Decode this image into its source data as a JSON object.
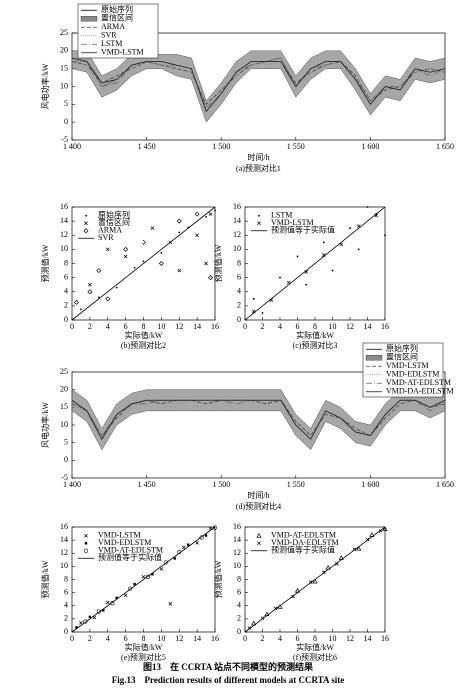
{
  "chart_data": [
    {
      "type": "line",
      "subtitle": "(a)预测对比1",
      "xlabel": "时间/h",
      "ylabel": "风电功率/kW",
      "xlim": [
        1400,
        1650
      ],
      "xticks": [
        {
          "value": 1400,
          "label": "1 400"
        },
        {
          "value": 1450,
          "label": "1 450"
        },
        {
          "value": 1500,
          "label": "1 500"
        },
        {
          "value": 1550,
          "label": "1 550"
        },
        {
          "value": 1600,
          "label": "1 600"
        },
        {
          "value": 1650,
          "label": "1 650"
        }
      ],
      "ylim": [
        -5,
        25
      ],
      "yticks": [
        -5,
        0,
        5,
        10,
        15,
        20,
        25
      ],
      "legend": "upper left",
      "x": [
        1400,
        1410,
        1420,
        1430,
        1440,
        1450,
        1460,
        1470,
        1480,
        1490,
        1500,
        1510,
        1520,
        1530,
        1540,
        1550,
        1560,
        1570,
        1580,
        1590,
        1600,
        1610,
        1620,
        1630,
        1640,
        1650
      ],
      "series": [
        {
          "name": "原始序列",
          "color": "#000000",
          "values": [
            18,
            17,
            10,
            12,
            16,
            17,
            17,
            16,
            15,
            3,
            8,
            14,
            17,
            17,
            18,
            10,
            15,
            17,
            17,
            12,
            5,
            10,
            9,
            15,
            14,
            15
          ]
        },
        {
          "name": "置信区间",
          "color": "#8a8a8a",
          "lower": [
            15,
            14,
            7,
            9,
            13,
            15,
            15,
            13,
            12,
            0,
            5,
            11,
            15,
            15,
            15,
            7,
            12,
            15,
            15,
            9,
            2,
            7,
            6,
            12,
            11,
            12
          ],
          "upper": [
            20,
            20,
            13,
            15,
            19,
            19,
            19,
            19,
            18,
            6,
            11,
            17,
            20,
            20,
            20,
            13,
            18,
            20,
            20,
            15,
            8,
            13,
            12,
            18,
            17,
            18
          ]
        },
        {
          "name": "ARMA",
          "color": "#444444",
          "dash": "4,2",
          "values": [
            17,
            16,
            11,
            13,
            15,
            17,
            16,
            15,
            14,
            5,
            9,
            13,
            16,
            17,
            17,
            11,
            14,
            16,
            17,
            13,
            6,
            9,
            10,
            14,
            15,
            14
          ]
        },
        {
          "name": "SVR",
          "color": "#999999",
          "dash": "1,1",
          "values": [
            18,
            16,
            9,
            12,
            15,
            16,
            17,
            16,
            14,
            4,
            7,
            13,
            17,
            16,
            17,
            9,
            14,
            17,
            16,
            11,
            5,
            11,
            9,
            14,
            14,
            15
          ]
        },
        {
          "name": "LSTM",
          "color": "#666666",
          "dash": "6,2,1,2",
          "values": [
            17,
            17,
            10,
            11,
            16,
            17,
            16,
            16,
            15,
            4,
            8,
            14,
            16,
            17,
            18,
            10,
            15,
            16,
            17,
            12,
            6,
            10,
            10,
            15,
            13,
            15
          ]
        },
        {
          "name": "VMD-LSTM",
          "color": "#222222",
          "values": [
            18,
            17,
            11,
            12,
            16,
            17,
            17,
            16,
            15,
            3,
            8,
            14,
            17,
            17,
            17,
            10,
            15,
            17,
            17,
            12,
            5,
            10,
            9,
            15,
            14,
            15
          ]
        }
      ]
    },
    {
      "type": "scatter",
      "subtitle": "(b)预测对比2",
      "xlabel": "实际值/kW",
      "ylabel": "预测值/kW",
      "xlim": [
        0,
        16
      ],
      "xticks": [
        0,
        2,
        4,
        6,
        8,
        10,
        12,
        14,
        16
      ],
      "ylim": [
        0,
        16
      ],
      "yticks": [
        0,
        2,
        4,
        6,
        8,
        10,
        12,
        14,
        16
      ],
      "legend": "upper left",
      "series": [
        {
          "name": "原始序列",
          "color": "#000000",
          "marker": "dot",
          "x": [
            1,
            3,
            5,
            7,
            8,
            10,
            12,
            13,
            15,
            16
          ],
          "values": [
            1.5,
            3.2,
            4.6,
            7.4,
            8.3,
            9.5,
            12.4,
            13.1,
            14.6,
            15.5
          ]
        },
        {
          "name": "置信区间",
          "color": "#000000",
          "marker": "x",
          "x": [
            2,
            4,
            5.5,
            6,
            9,
            11,
            12,
            14,
            15,
            15.5
          ],
          "values": [
            5,
            10,
            14,
            9,
            13,
            11,
            7,
            12,
            8,
            15
          ]
        },
        {
          "name": "ARMA",
          "color": "#000000",
          "marker": "diamond",
          "x": [
            0.5,
            2,
            3,
            4,
            6,
            8,
            10,
            12,
            14,
            15.5
          ],
          "values": [
            2.5,
            4,
            7,
            3,
            10,
            11,
            8,
            14,
            15,
            6
          ]
        },
        {
          "name": "SVR",
          "color": "#000000",
          "marker": "line",
          "x": [
            0,
            16
          ],
          "values": [
            0,
            16
          ]
        }
      ]
    },
    {
      "type": "scatter",
      "subtitle": "(c)预测对比3",
      "xlabel": "实际值/kW",
      "ylabel": "预测值/kW",
      "xlim": [
        0,
        16
      ],
      "xticks": [
        0,
        2,
        4,
        6,
        8,
        10,
        12,
        14,
        16
      ],
      "ylim": [
        0,
        16
      ],
      "yticks": [
        0,
        2,
        4,
        6,
        8,
        10,
        12,
        14,
        16
      ],
      "legend": "upper left",
      "series": [
        {
          "name": "LSTM",
          "color": "#000000",
          "marker": "dot",
          "x": [
            1,
            2,
            4,
            6,
            7,
            9,
            10,
            12,
            13,
            15,
            16,
            14
          ],
          "values": [
            3,
            1,
            6,
            9,
            5,
            11,
            7,
            13,
            10,
            15,
            12,
            16
          ]
        },
        {
          "name": "VMD-LSTM",
          "color": "#000000",
          "marker": "x",
          "x": [
            1,
            3,
            5,
            7,
            9,
            11,
            13,
            15
          ],
          "values": [
            1.2,
            2.8,
            5.3,
            6.8,
            9.2,
            10.7,
            13.3,
            14.8
          ]
        },
        {
          "name": "预测值等于实际值",
          "color": "#000000",
          "marker": "line",
          "x": [
            0,
            16
          ],
          "values": [
            0,
            16
          ]
        }
      ]
    },
    {
      "type": "line",
      "subtitle": "(d)预测对比4",
      "xlabel": "时间/h",
      "ylabel": "风电功率/kW",
      "xlim": [
        1400,
        1650
      ],
      "xticks": [
        {
          "value": 1400,
          "label": "1 400"
        },
        {
          "value": 1450,
          "label": "1 450"
        },
        {
          "value": 1500,
          "label": "1 500"
        },
        {
          "value": 1550,
          "label": "1 550"
        },
        {
          "value": 1600,
          "label": "1 600"
        },
        {
          "value": 1650,
          "label": "1 650"
        }
      ],
      "ylim": [
        -5,
        25
      ],
      "yticks": [
        -5,
        0,
        5,
        10,
        15,
        20,
        25
      ],
      "legend": "upper right",
      "x": [
        1400,
        1410,
        1420,
        1430,
        1440,
        1450,
        1460,
        1470,
        1480,
        1490,
        1500,
        1510,
        1520,
        1530,
        1540,
        1550,
        1560,
        1570,
        1580,
        1590,
        1600,
        1610,
        1620,
        1630,
        1640,
        1650
      ],
      "series": [
        {
          "name": "原始序列",
          "color": "#000000",
          "values": [
            17,
            14,
            6,
            13,
            16,
            17,
            17,
            17,
            17,
            17,
            17,
            17,
            17,
            17,
            17,
            10,
            6,
            14,
            12,
            8,
            7,
            13,
            17,
            17,
            15,
            17
          ]
        },
        {
          "name": "置信区间",
          "color": "#8a8a8a",
          "lower": [
            14,
            11,
            3,
            10,
            13,
            14,
            14,
            14,
            14,
            14,
            14,
            14,
            14,
            14,
            14,
            7,
            3,
            11,
            9,
            5,
            4,
            10,
            14,
            14,
            12,
            14
          ],
          "upper": [
            20,
            17,
            9,
            16,
            19,
            20,
            20,
            20,
            20,
            20,
            20,
            20,
            20,
            20,
            20,
            13,
            9,
            17,
            15,
            11,
            10,
            16,
            20,
            20,
            18,
            20
          ]
        },
        {
          "name": "VMD-LSTM",
          "color": "#444444",
          "dash": "4,2",
          "values": [
            16,
            14,
            7,
            12,
            16,
            17,
            16,
            17,
            17,
            16,
            17,
            17,
            17,
            16,
            17,
            11,
            7,
            13,
            12,
            9,
            7,
            12,
            16,
            17,
            15,
            16
          ]
        },
        {
          "name": "VMD-EDLSTM",
          "color": "#999999",
          "dash": "1,1",
          "values": [
            17,
            13,
            6,
            13,
            15,
            17,
            17,
            16,
            17,
            17,
            16,
            17,
            17,
            17,
            16,
            10,
            6,
            14,
            11,
            8,
            8,
            13,
            17,
            16,
            15,
            17
          ]
        },
        {
          "name": "VMD-AT-EDLSTM",
          "color": "#666666",
          "dash": "6,2,1,2",
          "values": [
            17,
            14,
            7,
            13,
            16,
            16,
            17,
            17,
            17,
            17,
            17,
            16,
            17,
            17,
            17,
            10,
            6,
            14,
            12,
            8,
            7,
            13,
            17,
            17,
            14,
            17
          ]
        },
        {
          "name": "VMD-DA-EDLSTM",
          "color": "#222222",
          "values": [
            17,
            14,
            6,
            13,
            16,
            17,
            17,
            17,
            17,
            17,
            17,
            17,
            17,
            17,
            17,
            10,
            6,
            14,
            12,
            8,
            7,
            13,
            17,
            17,
            15,
            17
          ]
        }
      ]
    },
    {
      "type": "scatter",
      "subtitle": "(e)预测对比5",
      "xlabel": "实际值/kW",
      "ylabel": "预测值/kW",
      "xlim": [
        0,
        16
      ],
      "xticks": [
        0,
        2,
        4,
        6,
        8,
        10,
        12,
        14,
        16
      ],
      "ylim": [
        0,
        16
      ],
      "yticks": [
        0,
        2,
        4,
        6,
        8,
        10,
        12,
        14,
        16
      ],
      "legend": "upper left",
      "series": [
        {
          "name": "VMD-LSTM",
          "color": "#000000",
          "marker": "x",
          "x": [
            1,
            2.5,
            4,
            6,
            8,
            10,
            11,
            12.5,
            14,
            15.5
          ],
          "values": [
            1.4,
            2.2,
            4.5,
            5.6,
            8.4,
            9.6,
            4.3,
            12.9,
            13.6,
            15.8
          ]
        },
        {
          "name": "VMD-EDLSTM",
          "color": "#000000",
          "marker": "square",
          "x": [
            0.5,
            2,
            3.5,
            5,
            7,
            9,
            11.5,
            13,
            15
          ],
          "values": [
            0.7,
            2.3,
            3.3,
            5.2,
            7.3,
            8.8,
            11.2,
            13.3,
            14.7
          ]
        },
        {
          "name": "VMD-AT-EDLSTM",
          "color": "#000000",
          "marker": "circle",
          "x": [
            1.5,
            3,
            4.5,
            6.5,
            8.5,
            10.5,
            12,
            14.5,
            16
          ],
          "values": [
            1.6,
            3.1,
            4.4,
            6.6,
            8.4,
            10.6,
            12.2,
            14.4,
            15.9
          ]
        },
        {
          "name": "预测值等于实际值",
          "color": "#000000",
          "marker": "line",
          "x": [
            0,
            16
          ],
          "values": [
            0,
            16
          ]
        }
      ]
    },
    {
      "type": "scatter",
      "subtitle": "(f)预测对比6",
      "xlabel": "实际值/kW",
      "ylabel": "预测值/kW",
      "xlim": [
        0,
        16
      ],
      "xticks": [
        0,
        2,
        4,
        6,
        8,
        10,
        12,
        14,
        16
      ],
      "ylim": [
        0,
        16
      ],
      "yticks": [
        0,
        2,
        4,
        6,
        8,
        10,
        12,
        14,
        16
      ],
      "legend": "upper left",
      "series": [
        {
          "name": "VMD-AT-EDLSTM",
          "color": "#000000",
          "marker": "triangle",
          "x": [
            1,
            2.5,
            4,
            6,
            8,
            9.5,
            11,
            13,
            14.5,
            16
          ],
          "values": [
            1.3,
            2.7,
            3.8,
            6.3,
            7.7,
            9.8,
            11.3,
            12.7,
            14.8,
            15.7
          ]
        },
        {
          "name": "VMD-DA-EDLSTM",
          "color": "#000000",
          "marker": "x",
          "x": [
            0.5,
            2,
            3.5,
            5.5,
            7.5,
            9,
            10.5,
            12.5,
            14,
            15.5
          ],
          "values": [
            0.6,
            2.1,
            3.6,
            5.4,
            7.6,
            9.1,
            10.4,
            12.6,
            14.1,
            15.4
          ]
        },
        {
          "name": "预测值等于实际值",
          "color": "#000000",
          "marker": "line",
          "x": [
            0,
            16
          ],
          "values": [
            0,
            16
          ]
        }
      ]
    }
  ],
  "caption": {
    "title": "图13　在 CCRTA 站点不同模型的预测结果",
    "title_en": "Fig.13　Prediction results of different models at CCRTA site"
  }
}
